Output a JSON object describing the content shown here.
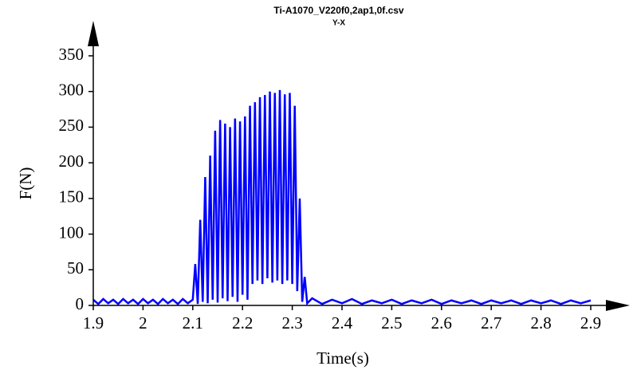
{
  "chart_data": {
    "type": "line",
    "title": "Ti-A1070_V220f0,2ap1,0f.csv",
    "subtitle": "Y-X",
    "xlabel": "Time(s)",
    "ylabel": "F(N)",
    "color": "#0000ff",
    "x": [
      1.9,
      1.91,
      1.92,
      1.93,
      1.94,
      1.95,
      1.96,
      1.97,
      1.98,
      1.99,
      2.0,
      2.01,
      2.02,
      2.03,
      2.04,
      2.05,
      2.06,
      2.07,
      2.08,
      2.09,
      2.1,
      2.105,
      2.11,
      2.115,
      2.12,
      2.125,
      2.13,
      2.135,
      2.14,
      2.145,
      2.15,
      2.155,
      2.16,
      2.165,
      2.17,
      2.175,
      2.18,
      2.185,
      2.19,
      2.195,
      2.2,
      2.205,
      2.21,
      2.215,
      2.22,
      2.225,
      2.23,
      2.235,
      2.24,
      2.245,
      2.25,
      2.255,
      2.26,
      2.265,
      2.27,
      2.275,
      2.28,
      2.285,
      2.29,
      2.295,
      2.3,
      2.305,
      2.31,
      2.315,
      2.32,
      2.325,
      2.33,
      2.34,
      2.36,
      2.38,
      2.4,
      2.42,
      2.44,
      2.46,
      2.48,
      2.5,
      2.52,
      2.54,
      2.56,
      2.58,
      2.6,
      2.62,
      2.64,
      2.66,
      2.68,
      2.7,
      2.72,
      2.74,
      2.76,
      2.78,
      2.8,
      2.82,
      2.84,
      2.86,
      2.88,
      2.9
    ],
    "values": [
      8,
      2,
      9,
      3,
      8,
      2,
      9,
      3,
      8,
      2,
      9,
      3,
      8,
      2,
      9,
      3,
      8,
      2,
      9,
      3,
      8,
      58,
      2,
      120,
      5,
      180,
      3,
      210,
      8,
      245,
      4,
      260,
      10,
      255,
      6,
      250,
      12,
      262,
      5,
      258,
      15,
      265,
      8,
      280,
      30,
      285,
      35,
      292,
      30,
      295,
      38,
      300,
      32,
      298,
      35,
      302,
      30,
      296,
      35,
      298,
      30,
      280,
      20,
      150,
      5,
      40,
      3,
      10,
      2,
      8,
      3,
      9,
      2,
      7,
      3,
      8,
      2,
      7,
      3,
      8,
      2,
      7,
      3,
      7,
      2,
      7,
      3,
      7,
      2,
      7,
      3,
      7,
      2,
      7,
      3,
      7
    ],
    "xlim": [
      1.9,
      2.9
    ],
    "ylim": [
      0,
      350
    ],
    "xticks": [
      1.9,
      2,
      2.1,
      2.2,
      2.3,
      2.4,
      2.5,
      2.6,
      2.7,
      2.8,
      2.9
    ],
    "yticks": [
      0,
      50,
      100,
      150,
      200,
      250,
      300,
      350
    ]
  }
}
